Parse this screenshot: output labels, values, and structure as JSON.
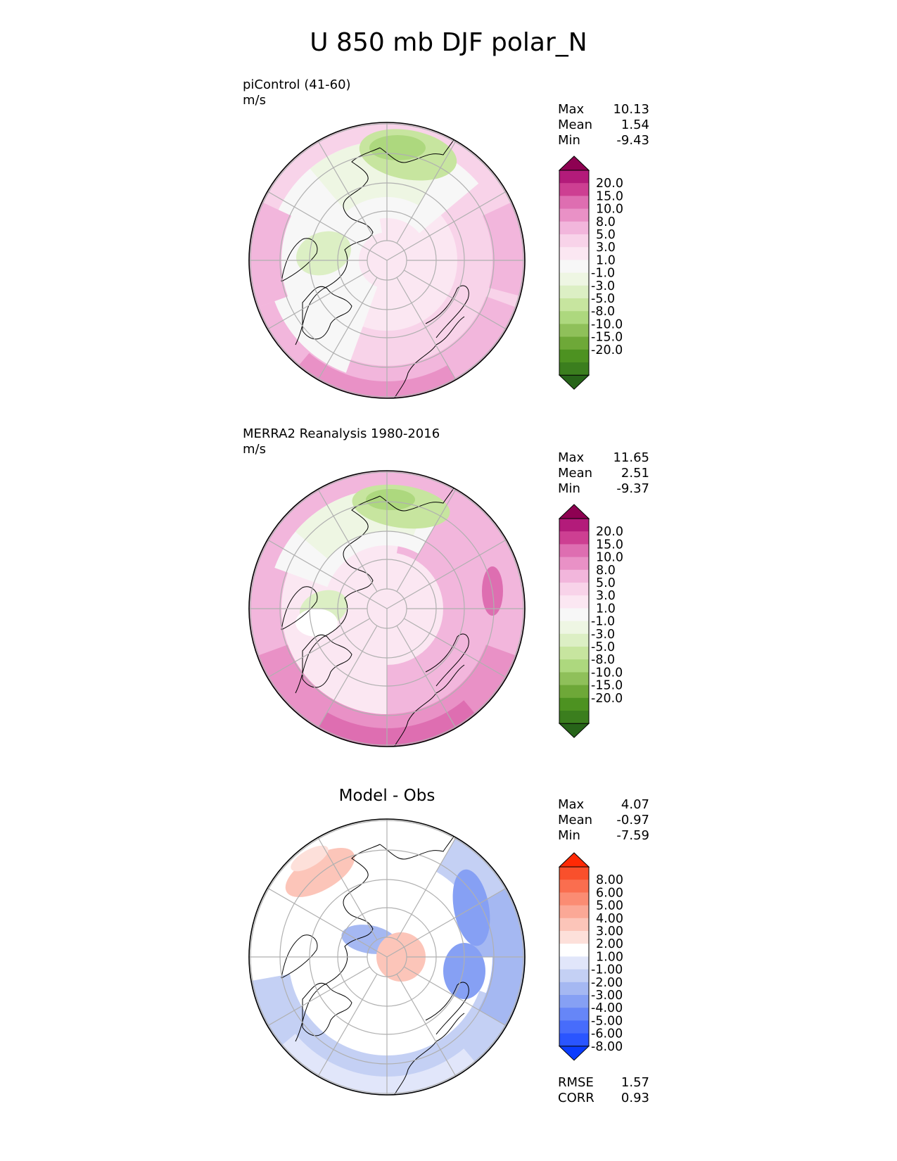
{
  "title": "U 850 mb DJF polar_N",
  "panels": [
    {
      "label": "piControl (41-60)",
      "units": "m/s",
      "title": "",
      "stats": {
        "max_label": "Max",
        "max": "10.13",
        "mean_label": "Mean",
        "mean": "1.54",
        "min_label": "Min",
        "min": "-9.43"
      },
      "colorbar": {
        "colors": [
          "#276419",
          "#3b7e1e",
          "#4d9221",
          "#6ea838",
          "#8fc05a",
          "#add87e",
          "#c7e59f",
          "#dcefc4",
          "#eef6e3",
          "#f7f7f7",
          "#fbe7f2",
          "#f8d3e9",
          "#f2b6dc",
          "#e991c6",
          "#de6eb1",
          "#cd3f92",
          "#b31b7a",
          "#8e0152"
        ],
        "ticks": [
          "20.0",
          "15.0",
          "10.0",
          "8.0",
          "5.0",
          "3.0",
          "1.0",
          "-1.0",
          "-3.0",
          "-5.0",
          "-8.0",
          "-10.0",
          "-15.0",
          "-20.0"
        ]
      }
    },
    {
      "label": "MERRA2 Reanalysis 1980-2016",
      "units": "m/s",
      "title": "",
      "stats": {
        "max_label": "Max",
        "max": "11.65",
        "mean_label": "Mean",
        "mean": "2.51",
        "min_label": "Min",
        "min": "-9.37"
      },
      "colorbar": {
        "colors": [
          "#276419",
          "#3b7e1e",
          "#4d9221",
          "#6ea838",
          "#8fc05a",
          "#add87e",
          "#c7e59f",
          "#dcefc4",
          "#eef6e3",
          "#f7f7f7",
          "#fbe7f2",
          "#f8d3e9",
          "#f2b6dc",
          "#e991c6",
          "#de6eb1",
          "#cd3f92",
          "#b31b7a",
          "#8e0152"
        ],
        "ticks": [
          "20.0",
          "15.0",
          "10.0",
          "8.0",
          "5.0",
          "3.0",
          "1.0",
          "-1.0",
          "-3.0",
          "-5.0",
          "-8.0",
          "-10.0",
          "-15.0",
          "-20.0"
        ]
      }
    },
    {
      "label": "",
      "units": "",
      "title": "Model - Obs",
      "stats": {
        "max_label": "Max",
        "max": "4.07",
        "mean_label": "Mean",
        "mean": "-0.97",
        "min_label": "Min",
        "min": "-7.59"
      },
      "extra_stats": {
        "rmse_label": "RMSE",
        "rmse": "1.57",
        "corr_label": "CORR",
        "corr": "0.93"
      },
      "colorbar": {
        "colors": [
          "#0a3cff",
          "#2a55ff",
          "#476cfb",
          "#6686f7",
          "#86a0f4",
          "#a5b8f2",
          "#c4d0f4",
          "#e1e6fa",
          "#ffffff",
          "#fde0da",
          "#fcc5b9",
          "#fba896",
          "#fb8c73",
          "#fa6e4f",
          "#f9502c",
          "#ff2a05"
        ],
        "ticks": [
          "8.00",
          "6.00",
          "5.00",
          "4.00",
          "3.00",
          "2.00",
          "1.00",
          "-1.00",
          "-2.00",
          "-3.00",
          "-4.00",
          "-5.00",
          "-6.00",
          "-8.00"
        ]
      }
    }
  ],
  "chart_data": [
    {
      "type": "heatmap",
      "projection": "north polar stereographic",
      "title": "U 850 mb DJF polar_N",
      "label": "piControl (41-60)",
      "units": "m/s",
      "stats": {
        "max": 10.13,
        "mean": 1.54,
        "min": -9.43
      },
      "levels": [
        -20,
        -15,
        -10,
        -8,
        -5,
        -3,
        -1,
        1,
        3,
        5,
        8,
        10,
        15,
        20
      ],
      "colormap": "PiYG",
      "pattern": "westerlies (pink) strongest over North Atlantic and North Pacific, easterlies (green) over Siberian/Eurasian Arctic and East Greenland"
    },
    {
      "type": "heatmap",
      "projection": "north polar stereographic",
      "title": "U 850 mb DJF polar_N",
      "label": "MERRA2 Reanalysis 1980-2016",
      "units": "m/s",
      "stats": {
        "max": 11.65,
        "mean": 2.51,
        "min": -9.37
      },
      "levels": [
        -20,
        -15,
        -10,
        -8,
        -5,
        -3,
        -1,
        1,
        3,
        5,
        8,
        10,
        15,
        20
      ],
      "colormap": "PiYG",
      "pattern": "stronger Atlantic and Pacific westerlies than model, easterlies over Siberia"
    },
    {
      "type": "heatmap",
      "projection": "north polar stereographic",
      "title": "Model - Obs",
      "stats": {
        "max": 4.07,
        "mean": -0.97,
        "min": -7.59,
        "rmse": 1.57,
        "corr": 0.93
      },
      "levels": [
        -8,
        -6,
        -5,
        -4,
        -3,
        -2,
        -1,
        1,
        2,
        3,
        4,
        5,
        6,
        8
      ],
      "colormap": "bwr",
      "pattern": "negative bias (blue) over North Atlantic and North Pacific, weak positive bias (red) over Siberia"
    }
  ]
}
